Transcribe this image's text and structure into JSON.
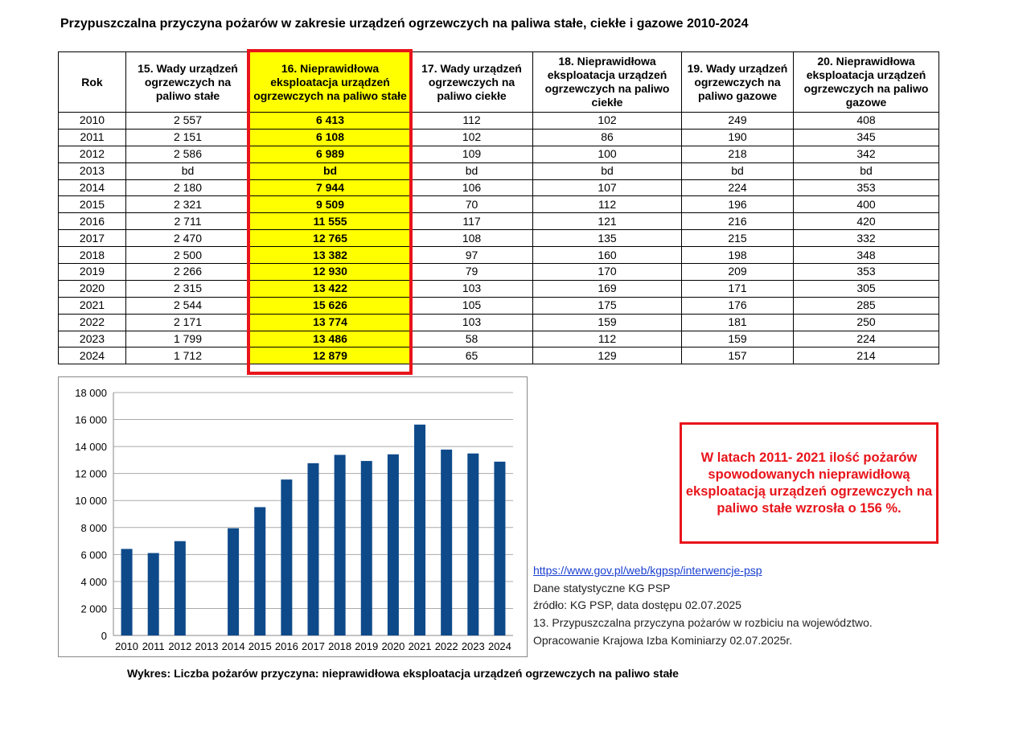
{
  "title": "Przypuszczalna przyczyna pożarów w zakresie urządzeń ogrzewczych na paliwa stałe, ciekłe i gazowe 2010-2024",
  "table": {
    "headers": [
      "Rok",
      "15. Wady urządzeń ogrzewczych na paliwo stałe",
      "16. Nieprawidłowa eksploatacja urządzeń ogrzewczych na paliwo stałe",
      "17. Wady urządzeń ogrzewczych na paliwo ciekłe",
      "18. Nieprawidłowa eksploatacja urządzeń ogrzewczych na paliwo ciekłe",
      "19. Wady urządzeń ogrzewczych na paliwo gazowe",
      "20. Nieprawidłowa eksploatacja urządzeń ogrzewczych na paliwo gazowe"
    ],
    "rows": [
      [
        "2010",
        "2 557",
        "6 413",
        "112",
        "102",
        "249",
        "408"
      ],
      [
        "2011",
        "2 151",
        "6 108",
        "102",
        "86",
        "190",
        "345"
      ],
      [
        "2012",
        "2 586",
        "6 989",
        "109",
        "100",
        "218",
        "342"
      ],
      [
        "2013",
        "bd",
        "bd",
        "bd",
        "bd",
        "bd",
        "bd"
      ],
      [
        "2014",
        "2 180",
        "7 944",
        "106",
        "107",
        "224",
        "353"
      ],
      [
        "2015",
        "2 321",
        "9 509",
        "70",
        "112",
        "196",
        "400"
      ],
      [
        "2016",
        "2 711",
        "11 555",
        "117",
        "121",
        "216",
        "420"
      ],
      [
        "2017",
        "2 470",
        "12 765",
        "108",
        "135",
        "215",
        "332"
      ],
      [
        "2018",
        "2 500",
        "13 382",
        "97",
        "160",
        "198",
        "348"
      ],
      [
        "2019",
        "2 266",
        "12 930",
        "79",
        "170",
        "209",
        "353"
      ],
      [
        "2020",
        "2 315",
        "13 422",
        "103",
        "169",
        "171",
        "305"
      ],
      [
        "2021",
        "2 544",
        "15 626",
        "105",
        "175",
        "176",
        "285"
      ],
      [
        "2022",
        "2 171",
        "13 774",
        "103",
        "159",
        "181",
        "250"
      ],
      [
        "2023",
        "1 799",
        "13 486",
        "58",
        "112",
        "159",
        "224"
      ],
      [
        "2024",
        "1 712",
        "12 879",
        "65",
        "129",
        "157",
        "214"
      ]
    ],
    "highlight_color": "#ffff00",
    "highlight_border_color": "#e8141b"
  },
  "chart_data": {
    "type": "bar",
    "categories": [
      "2010",
      "2011",
      "2012",
      "2013",
      "2014",
      "2015",
      "2016",
      "2017",
      "2018",
      "2019",
      "2020",
      "2021",
      "2022",
      "2023",
      "2024"
    ],
    "values": [
      6413,
      6108,
      6989,
      null,
      7944,
      9509,
      11555,
      12765,
      13382,
      12930,
      13422,
      15626,
      13774,
      13486,
      12879
    ],
    "ylim": [
      0,
      18000
    ],
    "yticks": [
      0,
      2000,
      4000,
      6000,
      8000,
      10000,
      12000,
      14000,
      16000,
      18000
    ],
    "ytick_labels": [
      "0",
      "2 000",
      "4 000",
      "6 000",
      "8 000",
      "10 000",
      "12 000",
      "14 000",
      "16 000",
      "18 000"
    ],
    "grid": true,
    "bar_color": "#0e4a8a"
  },
  "note": "W latach  2011- 2021 ilość pożarów spowodowanych nieprawidłową eksploatacją urządzeń ogrzewczych na paliwo stałe wzrosła o 156 %.",
  "sources": {
    "link": "https://www.gov.pl/web/kgpsp/interwencje-psp",
    "lines": [
      "Dane statystyczne KG PSP",
      "źródło: KG PSP, data dostępu 02.07.2025",
      "13. Przypuszczalna przyczyna pożarów w rozbiciu na województwo.",
      "Opracowanie Krajowa Izba Kominiarzy  02.07.2025r."
    ]
  },
  "caption": "Wykres:  Liczba pożarów przyczyna: nieprawidłowa eksploatacja urządzeń ogrzewczych na paliwo stałe"
}
